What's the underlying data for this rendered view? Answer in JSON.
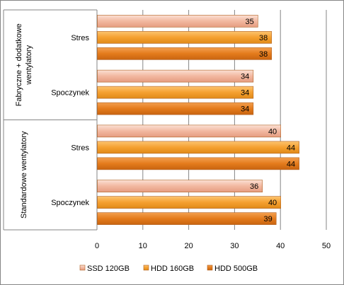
{
  "chart_data": {
    "type": "bar",
    "orientation": "horizontal",
    "title": "",
    "xlabel": "",
    "ylabel": "",
    "xlim": [
      0,
      50
    ],
    "xticks": [
      0,
      10,
      20,
      30,
      40,
      50
    ],
    "grid": true,
    "legend_position": "bottom",
    "groups": [
      {
        "label": "Fabryczne + dodatkowe wentylatory",
        "label_lines": [
          "Fabryczne + dodatkowe",
          "wentylatory"
        ],
        "categories": [
          "Stres",
          "Spoczynek"
        ]
      },
      {
        "label": "Standardowe wentylatory",
        "label_lines": [
          "Standardowe wentylatory"
        ],
        "categories": [
          "Stres",
          "Spoczynek"
        ]
      }
    ],
    "categories": [
      "Fabryczne + dodatkowe wentylatory / Stres",
      "Fabryczne + dodatkowe wentylatory / Spoczynek",
      "Standardowe wentylatory / Stres",
      "Standardowe wentylatory / Spoczynek"
    ],
    "series": [
      {
        "name": "SSD 120GB",
        "color": "#f2b8a0",
        "values": [
          35,
          34,
          40,
          36
        ]
      },
      {
        "name": "HDD 160GB",
        "color": "#f5a030",
        "values": [
          38,
          34,
          44,
          40
        ]
      },
      {
        "name": "HDD 500GB",
        "color": "#e47b1c",
        "values": [
          38,
          34,
          44,
          39
        ]
      }
    ]
  }
}
